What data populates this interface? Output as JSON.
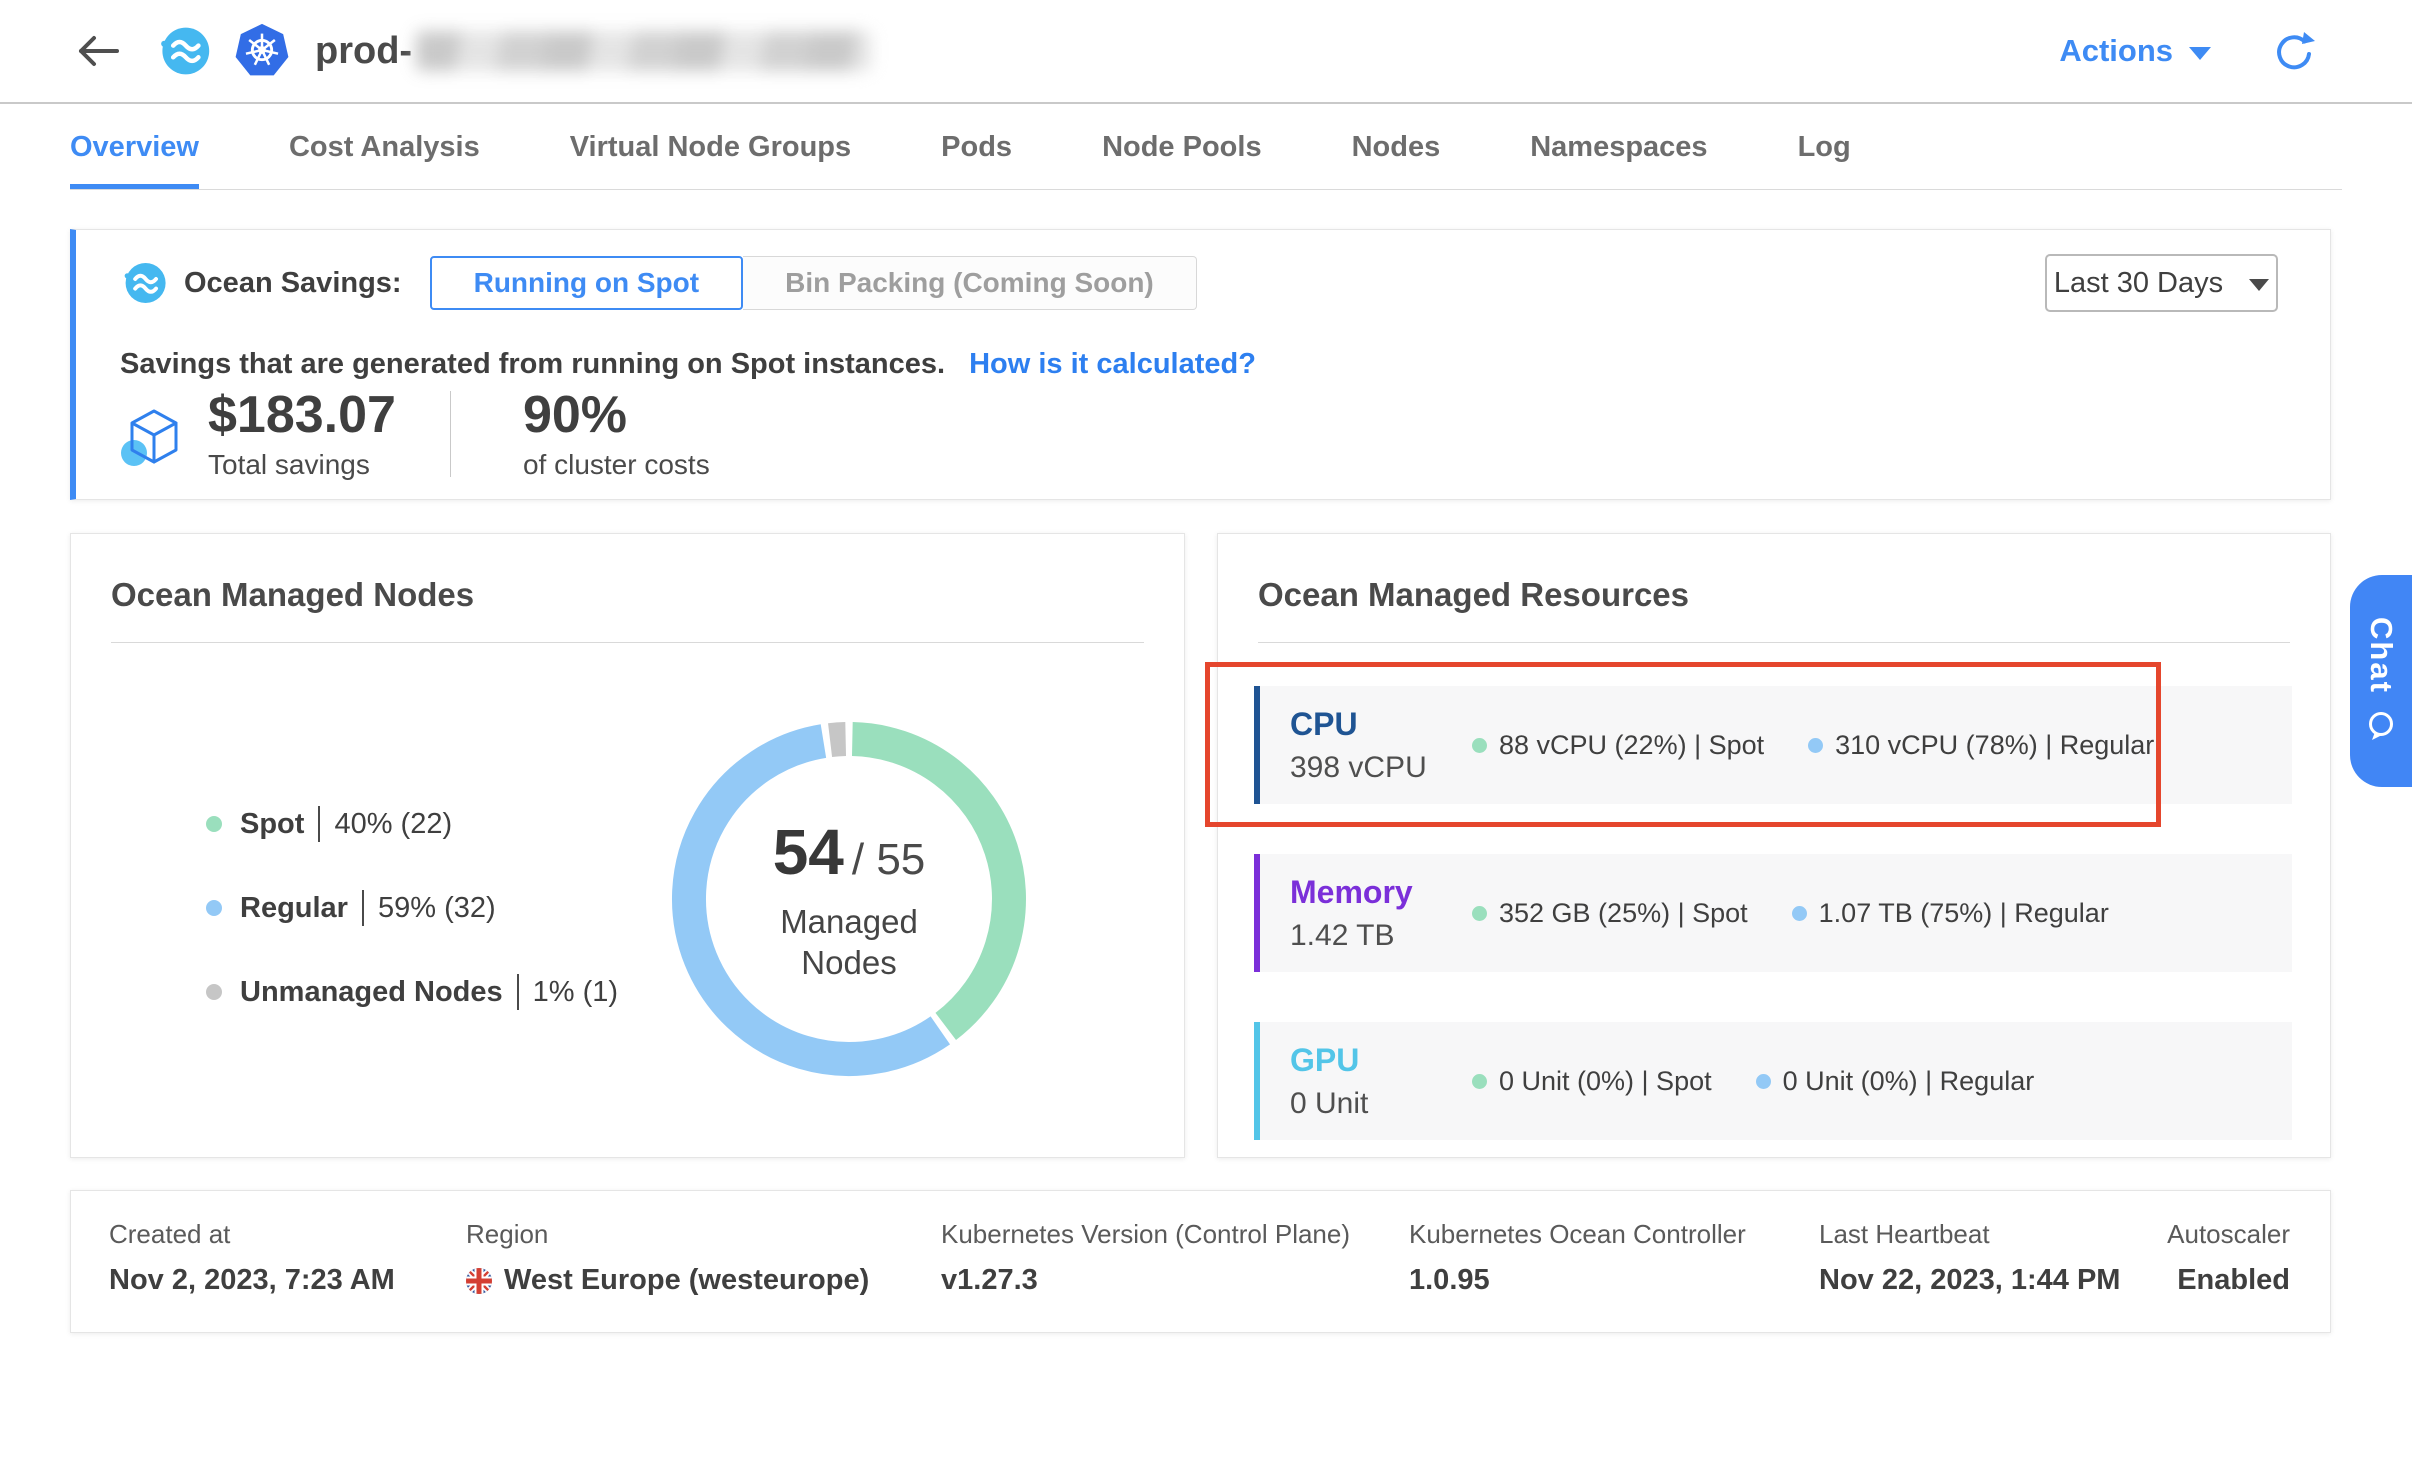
{
  "header": {
    "cluster_name_visible": "prod-",
    "actions_label": "Actions"
  },
  "tabs": [
    {
      "label": "Overview",
      "active": true
    },
    {
      "label": "Cost Analysis",
      "active": false
    },
    {
      "label": "Virtual Node Groups",
      "active": false
    },
    {
      "label": "Pods",
      "active": false
    },
    {
      "label": "Node Pools",
      "active": false
    },
    {
      "label": "Nodes",
      "active": false
    },
    {
      "label": "Namespaces",
      "active": false
    },
    {
      "label": "Log",
      "active": false
    }
  ],
  "savings_banner": {
    "label": "Ocean Savings:",
    "toggles": [
      {
        "label": "Running on Spot",
        "active": true
      },
      {
        "label": "Bin Packing (Coming Soon)",
        "active": false
      }
    ],
    "period": "Last 30 Days",
    "description": "Savings that are generated from running on Spot instances.",
    "link_label": "How is it calculated?",
    "total_savings_value": "$183.07",
    "total_savings_label": "Total savings",
    "cluster_cost_value": "90%",
    "cluster_cost_label": "of cluster costs"
  },
  "managed_nodes": {
    "title": "Ocean Managed Nodes",
    "donut_center": {
      "value": "54",
      "total": "/ 55",
      "label": "Managed Nodes"
    },
    "legend": [
      {
        "label": "Spot",
        "value": "40% (22)",
        "color": "#9adfbd"
      },
      {
        "label": "Regular",
        "value": "59% (32)",
        "color": "#93c9f6"
      },
      {
        "label": "Unmanaged Nodes",
        "value": "1% (1)",
        "color": "#c6c6c6"
      }
    ]
  },
  "chart_data": {
    "type": "pie",
    "title": "Ocean Managed Nodes",
    "categories": [
      "Spot",
      "Regular",
      "Unmanaged Nodes"
    ],
    "values": [
      40,
      59,
      1
    ],
    "counts": [
      22,
      32,
      1
    ],
    "colors": [
      "#9adfbd",
      "#93c9f6",
      "#c6c6c6"
    ],
    "center_label": "54 / 55 Managed Nodes",
    "legend_position": "left"
  },
  "managed_resources": {
    "title": "Ocean Managed Resources",
    "dot_colors": {
      "spot": "#9adfbd",
      "regular": "#93c9f6"
    },
    "rows": [
      {
        "name": "CPU",
        "total": "398 vCPU",
        "accent": "#1f5493",
        "spot_metric": "88 vCPU (22%) | Spot",
        "regular_metric": "310 vCPU (78%) | Regular",
        "highlighted": true
      },
      {
        "name": "Memory",
        "total": "1.42 TB",
        "accent": "#7b2fd9",
        "spot_metric": "352 GB (25%) | Spot",
        "regular_metric": "1.07 TB (75%) | Regular",
        "highlighted": false
      },
      {
        "name": "GPU",
        "total": "0 Unit",
        "accent": "#53c5e8",
        "spot_metric": "0 Unit (0%) | Spot",
        "regular_metric": "0 Unit (0%) | Regular",
        "highlighted": false
      }
    ]
  },
  "details": [
    {
      "label": "Created at",
      "value": "Nov 2, 2023, 7:23 AM"
    },
    {
      "label": "Region",
      "value": "West Europe (westeurope)",
      "flag": "uk"
    },
    {
      "label": "Kubernetes Version (Control Plane)",
      "value": "v1.27.3"
    },
    {
      "label": "Kubernetes Ocean Controller",
      "value": "1.0.95"
    },
    {
      "label": "Last Heartbeat",
      "value": "Nov 22, 2023, 1:44 PM"
    },
    {
      "label": "Autoscaler",
      "value": "Enabled"
    }
  ],
  "chat": {
    "label": "Chat"
  },
  "colors": {
    "accent_blue": "#3e8bf4",
    "annotation_red": "#e5462d"
  }
}
